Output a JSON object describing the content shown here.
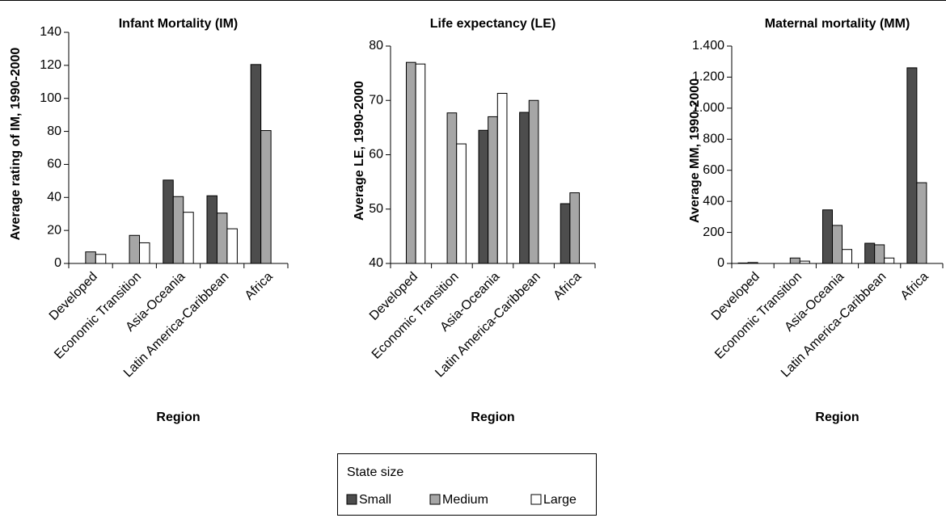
{
  "chart_data": [
    {
      "type": "bar",
      "title": "Infant Mortality (IM)",
      "x_label": "Region",
      "y_label": "Average rating of IM, 1990-2000",
      "categories": [
        "Developed",
        "Economic Transition",
        "Asia-Oceania",
        "Latin America-Caribbean",
        "Africa"
      ],
      "series": [
        {
          "name": "Small",
          "color": "#4d4d4d",
          "values": [
            null,
            null,
            50.5,
            41,
            120.5
          ]
        },
        {
          "name": "Medium",
          "color": "#a6a6a6",
          "values": [
            7,
            17,
            40.5,
            30.5,
            80.5
          ]
        },
        {
          "name": "Large",
          "color": "#ffffff",
          "values": [
            5.5,
            12.5,
            31,
            21,
            null
          ]
        }
      ],
      "ylim": [
        0,
        140
      ],
      "yticks": [
        0,
        20,
        40,
        60,
        80,
        100,
        120,
        140
      ],
      "legend_title": "State size"
    },
    {
      "type": "bar",
      "title": "Life expectancy (LE)",
      "x_label": "Region",
      "y_label": "Average LE, 1990-2000",
      "categories": [
        "Developed",
        "Economic Transition",
        "Asia-Oceania",
        "Latin America-Caribbean",
        "Africa"
      ],
      "series": [
        {
          "name": "Small",
          "color": "#4d4d4d",
          "values": [
            null,
            null,
            64.5,
            67.8,
            51
          ]
        },
        {
          "name": "Medium",
          "color": "#a6a6a6",
          "values": [
            77,
            67.7,
            67,
            70,
            53
          ]
        },
        {
          "name": "Large",
          "color": "#ffffff",
          "values": [
            76.7,
            62,
            71.3,
            null,
            null
          ]
        }
      ],
      "ylim": [
        40,
        80
      ],
      "yticks": [
        40,
        50,
        60,
        70,
        80
      ]
    },
    {
      "type": "bar",
      "title": "Maternal mortality (MM)",
      "x_label": "Region",
      "y_label": "Average MM, 1990-2000",
      "categories": [
        "Developed",
        "Economic Transition",
        "Asia-Oceania",
        "Latin America-Caribbean",
        "Africa"
      ],
      "series": [
        {
          "name": "Small",
          "color": "#4d4d4d",
          "values": [
            3,
            null,
            345,
            130,
            1260
          ]
        },
        {
          "name": "Medium",
          "color": "#a6a6a6",
          "values": [
            6,
            35,
            245,
            120,
            520
          ]
        },
        {
          "name": "Large",
          "color": "#ffffff",
          "values": [
            null,
            15,
            90,
            35,
            null
          ]
        }
      ],
      "ylim": [
        0,
        1400
      ],
      "yticks": [
        0,
        200,
        400,
        600,
        800,
        {
          "value": 1000,
          "label": "1.000"
        },
        {
          "value": 1200,
          "label": "1.200"
        },
        {
          "value": 1400,
          "label": "1.400"
        }
      ]
    }
  ]
}
